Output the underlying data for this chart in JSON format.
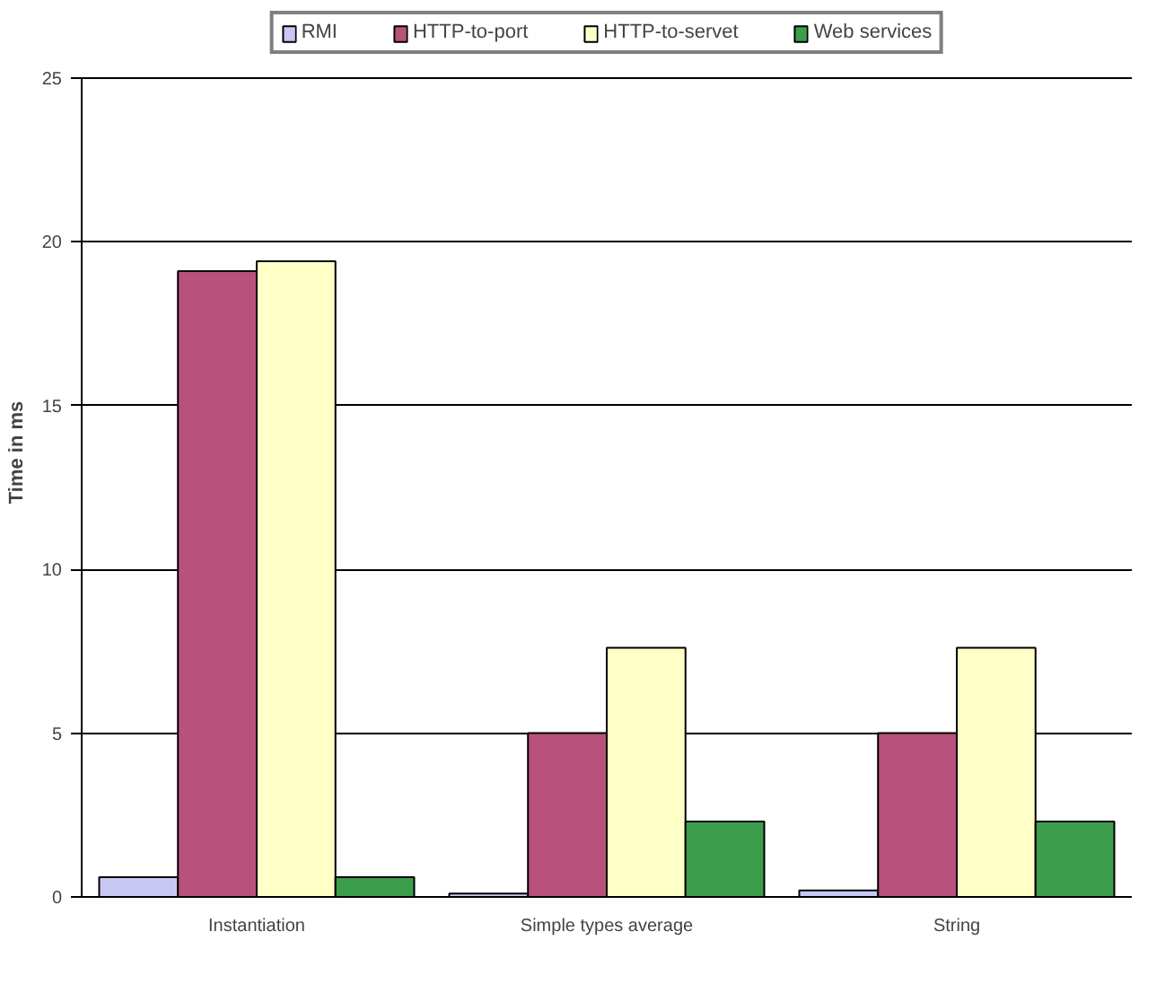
{
  "chart_data": {
    "type": "bar",
    "ylabel": "Time in ms",
    "categories": [
      "Instantiation",
      "Simple types average",
      "String"
    ],
    "series": [
      {
        "name": "RMI",
        "color": "#c8c8f4",
        "values": [
          0.6,
          0.1,
          0.2
        ]
      },
      {
        "name": "HTTP-to-port",
        "color": "#b8527c",
        "values": [
          19.1,
          5.0,
          5.0
        ]
      },
      {
        "name": "HTTP-to-servet",
        "color": "#ffffc8",
        "values": [
          19.4,
          7.6,
          7.6
        ]
      },
      {
        "name": "Web services",
        "color": "#3c9e4c",
        "values": [
          0.6,
          2.3,
          2.3
        ]
      }
    ],
    "ylim": [
      0,
      25
    ],
    "yticks": [
      0,
      5,
      10,
      15,
      20,
      25
    ],
    "grid": "y",
    "legend": "top"
  }
}
